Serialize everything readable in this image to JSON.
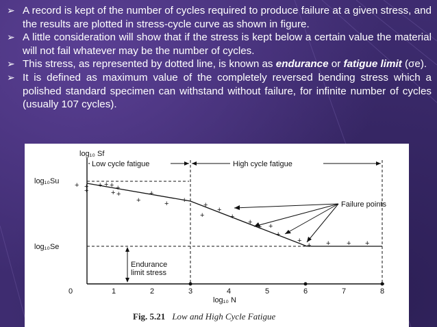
{
  "slide": {
    "bullets": [
      {
        "text": "A record is kept of the number of cycles required to produce failure at a given stress, and the results are plotted in stress-cycle curve as shown in figure."
      },
      {
        "text": "A little consideration will show that if the stress is kept below a certain value the material will not fail whatever may be the number of cycles."
      },
      {
        "text_before": "This stress, as represented by dotted line, is known as ",
        "term1": "endurance",
        "text_mid": " or ",
        "term2": "fatigue limit",
        "text_after": " (σe)."
      },
      {
        "text": "It is defined as maximum value of the completely reversed bending stress which a polished standard specimen can withstand without failure, for infinite number of cycles (usually 107 cycles)."
      }
    ]
  },
  "figure": {
    "y_axis_label": "log₁₀ Sf",
    "x_axis_label": "log₁₀ N",
    "su_label": "log₁₀Su",
    "se_label": "log₁₀Se",
    "region_low": "Low cycle fatigue",
    "region_high": "High cycle fatigue",
    "failure_label": "Failure points",
    "endurance_line1": "Endurance",
    "endurance_line2": "limit stress",
    "x_ticks": [
      "0",
      "1",
      "2",
      "3",
      "4",
      "5",
      "6",
      "7",
      "8"
    ],
    "caption_number": "Fig. 5.21",
    "caption_title": "Low and High Cycle Fatigue"
  }
}
